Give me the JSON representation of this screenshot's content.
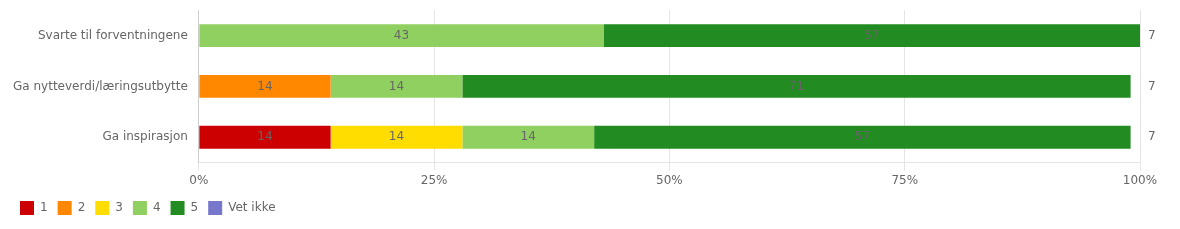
{
  "chart_data": {
    "type": "bar",
    "orientation": "horizontal",
    "stacked": true,
    "categories": [
      "Svarte til forventningene",
      "Ga nytteverdi/læringsutbytte",
      "Ga inspirasjon"
    ],
    "series": [
      {
        "name": "1",
        "color": "#cc0000",
        "values": [
          0,
          0,
          14
        ]
      },
      {
        "name": "2",
        "color": "#ff8800",
        "values": [
          0,
          14,
          0
        ]
      },
      {
        "name": "3",
        "color": "#ffdd00",
        "values": [
          0,
          0,
          14
        ]
      },
      {
        "name": "4",
        "color": "#90d060",
        "values": [
          43,
          14,
          14
        ]
      },
      {
        "name": "5",
        "color": "#228B22",
        "values": [
          57,
          71,
          57
        ]
      },
      {
        "name": "Vet ikke",
        "color": "#7777cc",
        "values": [
          0,
          0,
          0
        ]
      }
    ],
    "n_values": [
      7,
      7,
      7
    ],
    "xlim": [
      0,
      100
    ],
    "xticks": [
      {
        "value": 0,
        "label": "0%"
      },
      {
        "value": 25,
        "label": "25%"
      },
      {
        "value": 50,
        "label": "50%"
      },
      {
        "value": 75,
        "label": "75%"
      },
      {
        "value": 100,
        "label": "100%"
      }
    ],
    "grid": true,
    "legend": "bottom",
    "data_labels": true
  }
}
